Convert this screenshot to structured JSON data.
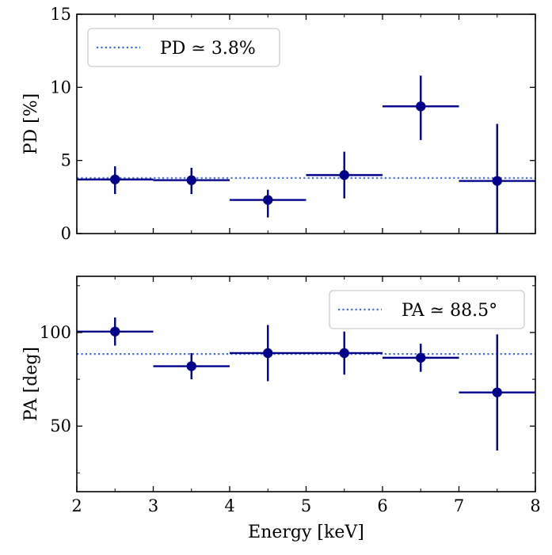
{
  "chart_data": [
    {
      "type": "scatter",
      "id": "pd-panel",
      "ylabel": "PD [%]",
      "xlabel": "",
      "xlim": [
        2,
        8
      ],
      "ylim": [
        0,
        15
      ],
      "x_ticks": [
        2,
        3,
        4,
        5,
        6,
        7,
        8
      ],
      "y_ticks": [
        0,
        5,
        10,
        15
      ],
      "y_tick_labels": [
        "0",
        "5",
        "10",
        "15"
      ],
      "show_x_tick_labels": false,
      "legend": {
        "label": "PD ≃ 3.8%",
        "position": "top-left"
      },
      "reference_line": {
        "y": 3.8,
        "style": "dotted",
        "color": "#4169e1"
      },
      "series": [
        {
          "name": "PD",
          "color": "#00008b",
          "points": [
            {
              "x": 2.5,
              "xerr": 0.5,
              "y": 3.7,
              "y_low": 2.7,
              "y_high": 4.6
            },
            {
              "x": 3.5,
              "xerr": 0.5,
              "y": 3.65,
              "y_low": 2.7,
              "y_high": 4.5
            },
            {
              "x": 4.5,
              "xerr": 0.5,
              "y": 2.3,
              "y_low": 1.1,
              "y_high": 3.0
            },
            {
              "x": 5.5,
              "xerr": 0.5,
              "y": 4.0,
              "y_low": 2.4,
              "y_high": 5.6
            },
            {
              "x": 6.5,
              "xerr": 0.5,
              "y": 8.7,
              "y_low": 6.4,
              "y_high": 10.8
            },
            {
              "x": 7.5,
              "xerr": 0.5,
              "y": 3.6,
              "y_low": 0.0,
              "y_high": 7.5
            }
          ]
        }
      ]
    },
    {
      "type": "scatter",
      "id": "pa-panel",
      "ylabel": "PA [deg]",
      "xlabel": "Energy [keV]",
      "xlim": [
        2,
        8
      ],
      "ylim": [
        15,
        130
      ],
      "x_ticks": [
        2,
        3,
        4,
        5,
        6,
        7,
        8
      ],
      "x_tick_labels": [
        "2",
        "3",
        "4",
        "5",
        "6",
        "7",
        "8"
      ],
      "y_ticks": [
        50,
        100
      ],
      "y_tick_labels": [
        "50",
        "100"
      ],
      "y_minor_ticks": [
        25,
        75,
        125
      ],
      "show_x_tick_labels": true,
      "legend": {
        "label": "PA ≃ 88.5°",
        "position": "top-right"
      },
      "reference_line": {
        "y": 88.5,
        "style": "dotted",
        "color": "#4169e1"
      },
      "series": [
        {
          "name": "PA",
          "color": "#00008b",
          "points": [
            {
              "x": 2.5,
              "xerr": 0.5,
              "y": 100.5,
              "y_low": 93,
              "y_high": 108
            },
            {
              "x": 3.5,
              "xerr": 0.5,
              "y": 82,
              "y_low": 75,
              "y_high": 89
            },
            {
              "x": 4.5,
              "xerr": 0.5,
              "y": 89,
              "y_low": 74,
              "y_high": 104
            },
            {
              "x": 5.5,
              "xerr": 0.5,
              "y": 89,
              "y_low": 77.5,
              "y_high": 100.5
            },
            {
              "x": 6.5,
              "xerr": 0.5,
              "y": 86.5,
              "y_low": 79,
              "y_high": 94
            },
            {
              "x": 7.5,
              "xerr": 0.5,
              "y": 68,
              "y_low": 37,
              "y_high": 99
            }
          ]
        }
      ]
    }
  ]
}
